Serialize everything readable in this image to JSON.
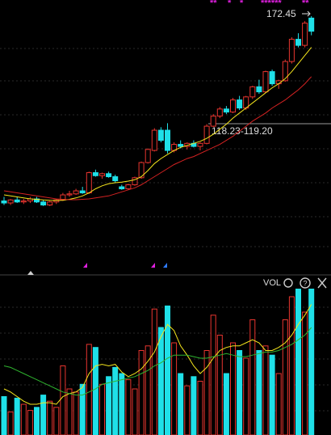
{
  "chart_data": {
    "type": "candlestick",
    "flags": [
      "**",
      "*",
      "*",
      "******",
      "**"
    ],
    "high_label": "172.45",
    "range_label": "118.23-119.20",
    "volume_title": "VOL",
    "ylim": [
      49.2,
      180.45
    ],
    "up_color": "#e8352f",
    "down_color": "#1fe0e8",
    "open": [
      81,
      80,
      81.5,
      80.5,
      81,
      82,
      80.5,
      79,
      80.5,
      81.5,
      84,
      84.5,
      86,
      85,
      95,
      93.5,
      94.5,
      93,
      88,
      87,
      89,
      92.5,
      100,
      106,
      116,
      116,
      106,
      109,
      108,
      109.5,
      108,
      109.5,
      118,
      123,
      126.5,
      125,
      131,
      127,
      132.5,
      137.5,
      135,
      145,
      139,
      140.5,
      150,
      161,
      158,
      171.5
    ],
    "high": [
      83,
      82,
      83,
      82,
      83,
      83,
      81.5,
      81,
      82,
      85,
      86,
      87,
      88,
      95.5,
      96.5,
      95,
      95.5,
      94,
      89,
      89.5,
      93,
      100.5,
      107,
      117,
      117.5,
      119.5,
      110,
      111,
      110,
      111,
      110,
      119,
      124,
      127.5,
      128,
      132,
      133,
      133,
      138,
      141,
      145.5,
      146,
      141,
      151,
      162,
      164,
      170,
      172.45
    ],
    "low": [
      79,
      79,
      80,
      79.5,
      80,
      80,
      78.5,
      78.5,
      79.5,
      81,
      83,
      84,
      84.5,
      84.5,
      93,
      92,
      92.5,
      90,
      86.5,
      86.5,
      88.5,
      92,
      99.5,
      105.5,
      110,
      104.5,
      105,
      107,
      106.5,
      107.5,
      106,
      109,
      117.5,
      122,
      124,
      124.5,
      126,
      126,
      131.5,
      134,
      134.5,
      138,
      136.5,
      140,
      149,
      157,
      157,
      163
    ],
    "close": [
      80,
      81.5,
      80.5,
      81,
      82,
      80.5,
      79,
      80.5,
      81.5,
      84,
      84.5,
      86,
      85,
      95,
      93.5,
      94.5,
      93,
      91,
      87,
      89,
      92.5,
      100,
      106.5,
      116,
      111,
      106,
      109,
      108,
      109.5,
      108,
      109.5,
      118,
      123,
      126.5,
      125,
      131,
      127,
      132.5,
      137.5,
      135,
      145,
      139,
      140.5,
      150,
      161,
      158,
      169,
      165
    ],
    "ma_lines": [
      {
        "color": "#f5e61c",
        "values": [
          84,
          83.5,
          83,
          82.5,
          82,
          81.8,
          81.5,
          81.3,
          81.2,
          81.3,
          81.8,
          82.5,
          83.5,
          85,
          87,
          88.5,
          89.5,
          90,
          90.3,
          90.8,
          91.5,
          93,
          96,
          99.5,
          102,
          104,
          106,
          107.5,
          108.5,
          109.5,
          110.5,
          112,
          114,
          116.5,
          119,
          122,
          124.5,
          127,
          129.5,
          132,
          134.5,
          137,
          139,
          141.5,
          145,
          149,
          153,
          157
        ]
      },
      {
        "color": "#d42222",
        "values": [
          86,
          85.5,
          85,
          84.5,
          84,
          83.5,
          83,
          82.5,
          82,
          81.8,
          81.6,
          81.6,
          81.8,
          82,
          82.5,
          83,
          83.5,
          84.5,
          85.5,
          86.5,
          87.5,
          89,
          91,
          93,
          95,
          97,
          99,
          100.5,
          102,
          103,
          104.5,
          106,
          107.5,
          109,
          111,
          113,
          115.5,
          118,
          120.5,
          122.5,
          124.5,
          127,
          129,
          131,
          133.5,
          136,
          139,
          142.5
        ]
      }
    ],
    "vlim": [
      0,
      100
    ],
    "volume": [
      25,
      15,
      24,
      20,
      16,
      18,
      26,
      22,
      18,
      45,
      30,
      28,
      33,
      59,
      57,
      33,
      38,
      44,
      40,
      36,
      30,
      55,
      58,
      82,
      70,
      84,
      60,
      40,
      32,
      38,
      35,
      55,
      78,
      65,
      40,
      60,
      55,
      50,
      75,
      55,
      58,
      52,
      40,
      75,
      90,
      95,
      80,
      95
    ],
    "volume_lines": [
      {
        "color": "#f5e61c",
        "values": [
          30,
          28,
          25,
          22,
          20,
          20,
          21,
          21,
          20,
          25,
          27,
          28,
          31,
          40,
          45,
          46,
          45,
          46,
          41,
          38,
          40,
          43,
          48,
          54,
          64,
          72,
          68,
          58,
          52,
          45,
          40,
          44,
          50,
          55,
          57,
          58,
          58,
          60,
          62,
          60,
          55,
          55,
          57,
          60,
          65,
          72,
          78,
          85
        ]
      },
      {
        "color": "#2fb52f",
        "values": [
          45,
          44,
          42,
          40,
          38,
          36,
          34,
          32,
          30,
          28,
          27,
          26,
          26,
          28,
          30,
          33,
          34,
          35,
          36,
          37,
          38,
          40,
          42,
          45,
          47,
          50,
          52,
          52,
          52,
          51,
          50,
          50,
          51,
          52,
          53,
          52,
          51,
          51,
          52,
          53,
          54,
          54,
          55,
          57,
          59,
          62,
          65,
          70
        ]
      }
    ]
  }
}
